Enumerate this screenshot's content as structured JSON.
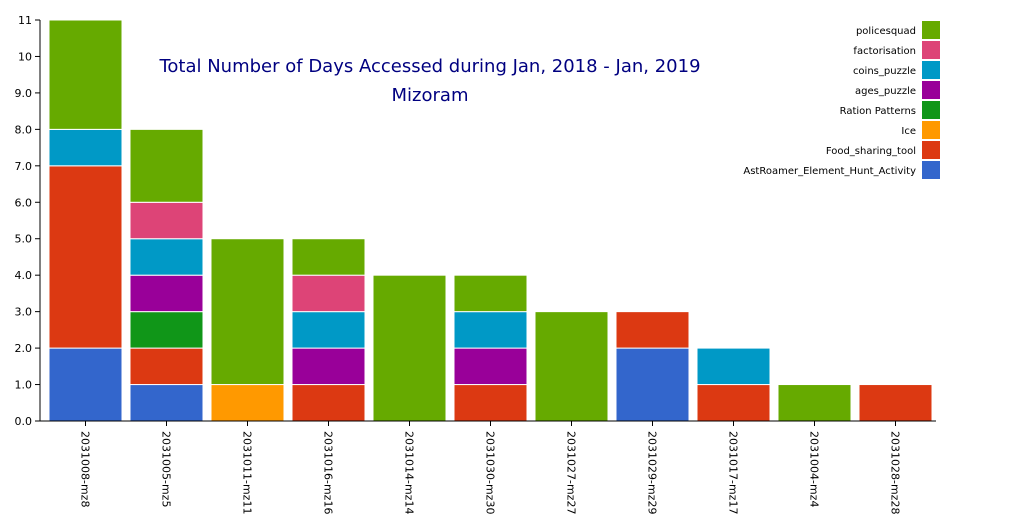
{
  "chart_data": {
    "type": "bar",
    "stacked": true,
    "title": "Total Number of Days Accessed during Jan, 2018 - Jan, 2019",
    "subtitle": "Mizoram",
    "xlabel": "",
    "ylabel": "",
    "ylim": [
      0,
      11
    ],
    "yticks": [
      "0.0",
      "1.0",
      "2.0",
      "3.0",
      "4.0",
      "5.0",
      "6.0",
      "7.0",
      "8.0",
      "9.0",
      "10",
      "11"
    ],
    "legend_position": "top-right",
    "categories": [
      "2031008-mz8",
      "2031005-mz5",
      "2031011-mz11",
      "2031016-mz16",
      "2031014-mz14",
      "2031030-mz30",
      "2031027-mz27",
      "2031029-mz29",
      "2031017-mz17",
      "2031004-mz4",
      "2031028-mz28"
    ],
    "series": [
      {
        "name": "AstRoamer_Element_Hunt_Activity",
        "color": "#3366cc",
        "values": [
          2,
          1,
          0,
          0,
          0,
          0,
          0,
          2,
          0,
          0,
          0
        ]
      },
      {
        "name": "Food_sharing_tool",
        "color": "#dc3912",
        "values": [
          5,
          1,
          0,
          1,
          0,
          1,
          0,
          1,
          1,
          0,
          1
        ]
      },
      {
        "name": "Ice",
        "color": "#ff9900",
        "values": [
          0,
          0,
          1,
          0,
          0,
          0,
          0,
          0,
          0,
          0,
          0
        ]
      },
      {
        "name": "Ration Patterns",
        "color": "#109618",
        "values": [
          0,
          1,
          0,
          0,
          0,
          0,
          0,
          0,
          0,
          0,
          0
        ]
      },
      {
        "name": "ages_puzzle",
        "color": "#990099",
        "values": [
          0,
          1,
          0,
          1,
          0,
          1,
          0,
          0,
          0,
          0,
          0
        ]
      },
      {
        "name": "coins_puzzle",
        "color": "#0099c6",
        "values": [
          1,
          1,
          0,
          1,
          0,
          1,
          0,
          0,
          1,
          0,
          0
        ]
      },
      {
        "name": "factorisation",
        "color": "#dd4477",
        "values": [
          0,
          1,
          0,
          1,
          0,
          0,
          0,
          0,
          0,
          0,
          0
        ]
      },
      {
        "name": "policesquad",
        "color": "#66aa00",
        "values": [
          3,
          2,
          4,
          1,
          4,
          1,
          3,
          0,
          0,
          1,
          0
        ]
      }
    ],
    "legend_order": [
      "policesquad",
      "factorisation",
      "coins_puzzle",
      "ages_puzzle",
      "Ration Patterns",
      "Ice",
      "Food_sharing_tool",
      "AstRoamer_Element_Hunt_Activity"
    ]
  }
}
